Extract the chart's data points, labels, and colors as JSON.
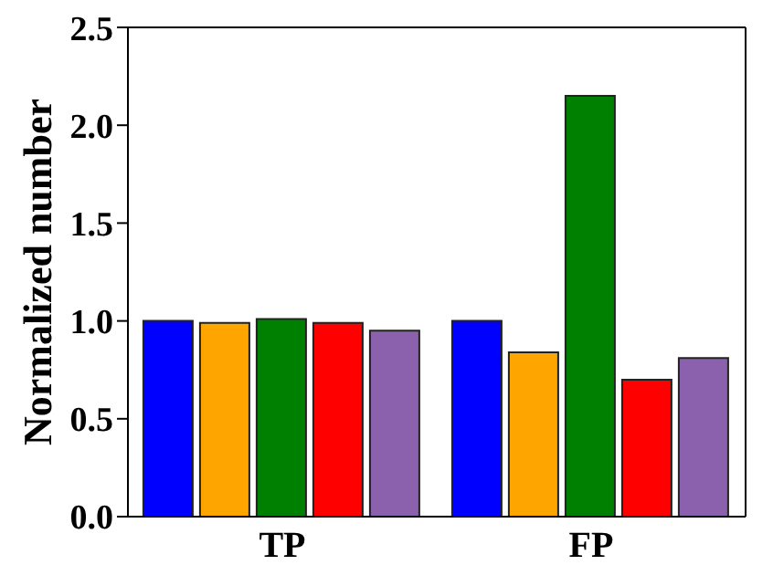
{
  "chart_data": {
    "type": "bar",
    "ylabel": "Normalized number",
    "categories": [
      "TP",
      "FP"
    ],
    "series": [
      {
        "color": "#0000ff",
        "values": [
          1.0,
          1.0
        ]
      },
      {
        "color": "#ffa500",
        "values": [
          0.99,
          0.84
        ]
      },
      {
        "color": "#008000",
        "values": [
          1.01,
          2.15
        ]
      },
      {
        "color": "#ff0000",
        "values": [
          0.99,
          0.7
        ]
      },
      {
        "color": "#8b61ad",
        "values": [
          0.95,
          0.81
        ]
      }
    ],
    "ylim": [
      0,
      2.5
    ],
    "yticks": [
      {
        "value": 0,
        "label": "0.0"
      },
      0.5,
      {
        "value": 1,
        "label": "1.0"
      },
      1.5,
      {
        "value": 2,
        "label": "2.0"
      },
      2.5
    ],
    "grid": false,
    "legend": false
  }
}
